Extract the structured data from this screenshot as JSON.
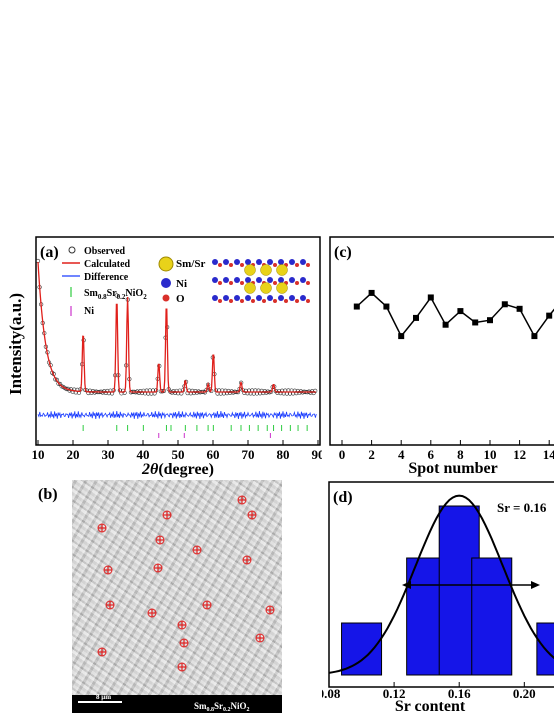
{
  "panel_a": {
    "label": "(a)",
    "ylabel": "Intensity(a.u.)",
    "xlabel_theta": "2θ",
    "xlabel_unit": "(degree)",
    "xticks": [
      "10",
      "20",
      "30",
      "40",
      "50",
      "60",
      "70",
      "80",
      "90"
    ],
    "legend": {
      "observed": "Observed",
      "calculated": "Calculated",
      "difference": "Difference",
      "phase1": "Sm",
      "phase1_sub1": "0.8",
      "phase1_mid": "Sr",
      "phase1_sub2": "0.2",
      "phase1_end": "NiO",
      "phase1_sub3": "2",
      "phase2": "Ni"
    },
    "structure_legend": {
      "smsr": "Sm/Sr",
      "ni": "Ni",
      "o": "O"
    },
    "colors": {
      "observed": "#333333",
      "calculated": "#e0201b",
      "difference": "#1a3cff",
      "tick1": "#2ecc40",
      "tick2": "#cc33cc",
      "smsr": "#e8d21a",
      "ni": "#2a2acc",
      "o": "#d9302a"
    }
  },
  "panel_b": {
    "label": "(b)",
    "scale": "8 μm",
    "caption_a": "Sm",
    "caption_s1": "0.8",
    "caption_b": "Sr",
    "caption_s2": "0.2",
    "caption_c": "NiO",
    "caption_s3": "2"
  },
  "panel_c": {
    "label": "(c)",
    "xlabel": "Spot number"
  },
  "panel_d": {
    "label": "(d)",
    "annotation": "Sr = 0.16",
    "xlabel": "Sr content"
  },
  "chart_data": [
    {
      "type": "line",
      "panel": "c",
      "xlabel": "Spot number",
      "x": [
        1,
        2,
        3,
        4,
        5,
        6,
        7,
        8,
        9,
        10,
        11,
        12,
        13,
        14,
        15
      ],
      "values": [
        0.165,
        0.171,
        0.165,
        0.152,
        0.16,
        0.169,
        0.157,
        0.163,
        0.158,
        0.159,
        0.166,
        0.164,
        0.152,
        0.161,
        0.169
      ],
      "xticks": [
        0,
        2,
        4,
        6,
        8,
        10,
        12,
        14
      ],
      "xlim": [
        0,
        15.5
      ]
    },
    {
      "type": "bar",
      "panel": "d",
      "xlabel": "Sr content",
      "categories": [
        0.1,
        0.14,
        0.16,
        0.18,
        0.22
      ],
      "values": [
        2,
        4.5,
        6.5,
        4.5,
        2
      ],
      "xticks": [
        "0.08",
        "0.12",
        "0.16",
        "0.20"
      ],
      "xlim": [
        0.08,
        0.225
      ],
      "ylim": [
        0,
        7
      ],
      "fit": "gaussian",
      "annotation": "Sr = 0.16"
    },
    {
      "type": "line",
      "panel": "a",
      "xlabel": "2θ (degree)",
      "ylabel": "Intensity(a.u.)",
      "xlim": [
        10,
        90
      ],
      "xticks": [
        10,
        20,
        30,
        40,
        50,
        60,
        70,
        80,
        90
      ],
      "peaks_2theta": [
        22.9,
        32.5,
        35.6,
        44.5,
        46.7,
        52.1,
        58.6,
        60.1,
        68.0,
        77.3
      ],
      "series": [
        {
          "name": "Observed"
        },
        {
          "name": "Calculated"
        },
        {
          "name": "Difference"
        }
      ]
    }
  ]
}
